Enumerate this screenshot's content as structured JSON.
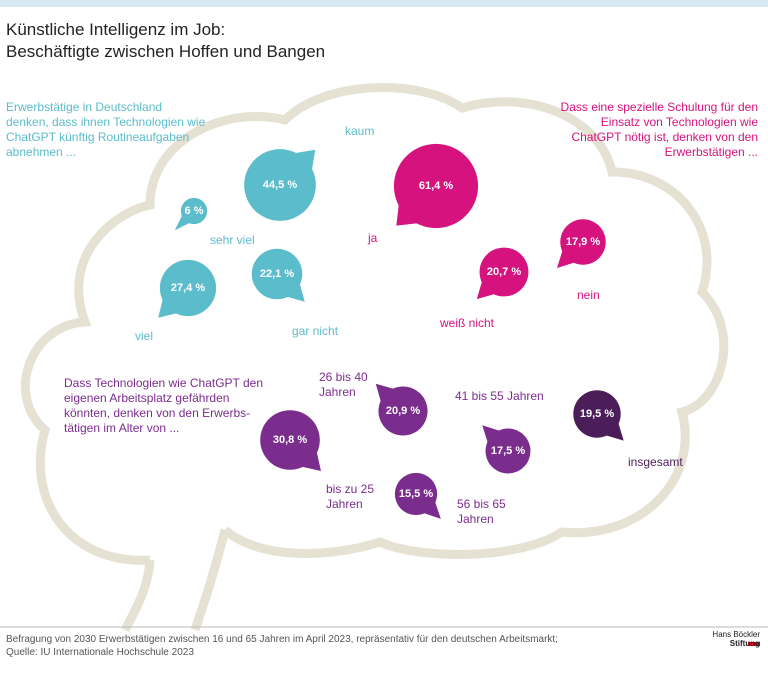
{
  "header": {
    "title_lines": [
      "Künstliche Intelligenz im Job:",
      "Beschäftigte zwischen Hoffen und Bangen"
    ]
  },
  "chart_data": [
    {
      "type": "bubble",
      "subtitle": "Erwerbstätige in Deutschland denken, dass ihnen Technologien wie ChatGPT künftig Routineaufgaben abnehmen ...",
      "categories": [
        "kaum",
        "sehr viel",
        "viel",
        "gar nicht"
      ],
      "values": [
        44.5,
        6,
        27.4,
        22.1
      ],
      "value_labels": [
        "44,5 %",
        "6 %",
        "27,4 %",
        "22,1 %"
      ],
      "color": "#5bbccb"
    },
    {
      "type": "bubble",
      "subtitle": "Dass eine spezielle Schulung für den Einsatz von Technologien wie ChatGPT nötig ist, denken von den Erwerbstätigen ...",
      "categories": [
        "ja",
        "nein",
        "weiß nicht"
      ],
      "values": [
        61.4,
        17.9,
        20.7
      ],
      "value_labels": [
        "61,4 %",
        "17,9 %",
        "20,7 %"
      ],
      "color": "#d6127f"
    },
    {
      "type": "bubble",
      "subtitle": "Dass Technologien wie ChatGPT den eigenen Arbeitsplatz gefährden könnten, denken von den Erwerbs­tätigen im Alter von ...",
      "categories": [
        "bis zu 25 Jahren",
        "26 bis 40 Jahren",
        "41 bis 55 Jahren",
        "56 bis 65 Jahren",
        "insgesamt"
      ],
      "values": [
        30.8,
        20.9,
        17.5,
        15.5,
        19.5
      ],
      "value_labels": [
        "30,8 %",
        "20,9 %",
        "17,5 %",
        "15,5 %",
        "19,5 %"
      ],
      "colors": [
        "#7b2d8e",
        "#7b2d8e",
        "#7b2d8e",
        "#7b2d8e",
        "#4b1e5a"
      ]
    }
  ],
  "footer": {
    "note": "Befragung von 2030 Erwerbstätigen zwischen 16 und 65 Jahren im April 2023, repräsentativ für den deutschen Arbeitsmarkt;",
    "source": "Quelle: IU Internationale Hochschule 2023",
    "logo_lines": [
      "Hans Böckler",
      "Stiftung"
    ]
  }
}
